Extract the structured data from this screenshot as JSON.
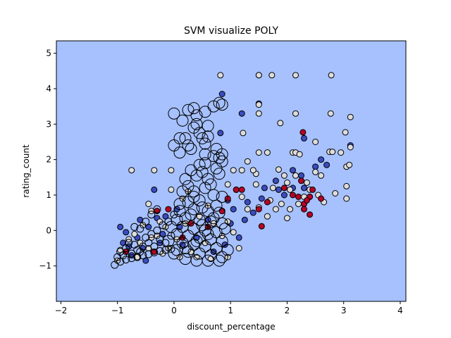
{
  "chart_data": {
    "type": "scatter",
    "title": "SVM visualize POLY",
    "xlabel": "discount_percentage",
    "ylabel": "rating_count",
    "xlim": [
      -2.08,
      4.1
    ],
    "ylim": [
      -2.0,
      5.35
    ],
    "xticks": [
      "−2",
      "−1",
      "0",
      "1",
      "2",
      "3",
      "4"
    ],
    "xtick_values": [
      -2,
      -1,
      0,
      1,
      2,
      3,
      4
    ],
    "yticks": [
      "−1",
      "0",
      "1",
      "2",
      "3",
      "4",
      "5"
    ],
    "ytick_values": [
      -1,
      0,
      1,
      2,
      3,
      4,
      5
    ],
    "grid": false,
    "legend": "none",
    "background_color": "#a6c1fe",
    "series": [
      {
        "color": "#3b4cc0",
        "marker": "small-filled",
        "points": [
          [
            0.85,
            3.85
          ],
          [
            0.82,
            2.75
          ],
          [
            1.5,
            3.58
          ],
          [
            1.5,
            4.38
          ],
          [
            1.2,
            3.3
          ],
          [
            2.3,
            2.6
          ],
          [
            2.1,
            1.7
          ],
          [
            2.3,
            1.2
          ],
          [
            1.95,
            1.0
          ],
          [
            2.6,
            2.0
          ],
          [
            2.7,
            1.85
          ],
          [
            3.12,
            2.4
          ],
          [
            1.8,
            1.4
          ],
          [
            1.6,
            1.2
          ],
          [
            1.55,
            0.9
          ],
          [
            1.4,
            0.5
          ],
          [
            1.3,
            0.8
          ],
          [
            1.25,
            0.3
          ],
          [
            1.05,
            0.6
          ],
          [
            0.95,
            0.85
          ],
          [
            2.1,
            1.2
          ],
          [
            2.25,
            1.55
          ],
          [
            2.5,
            1.8
          ],
          [
            1.85,
            1.15
          ],
          [
            -0.35,
            1.15
          ],
          [
            -0.3,
            0.35
          ],
          [
            -0.45,
            0.1
          ],
          [
            -0.6,
            0.3
          ],
          [
            -0.85,
            -0.05
          ],
          [
            -0.9,
            -0.35
          ],
          [
            -0.75,
            -0.7
          ],
          [
            -0.55,
            -0.5
          ],
          [
            -0.2,
            -0.1
          ],
          [
            -0.95,
            0.1
          ],
          [
            -0.65,
            -0.2
          ],
          [
            -0.15,
            0.4
          ],
          [
            0.1,
            0.1
          ],
          [
            0.15,
            -0.4
          ],
          [
            0.4,
            -0.2
          ],
          [
            0.6,
            0.3
          ],
          [
            0.7,
            -0.6
          ],
          [
            0.9,
            -0.4
          ],
          [
            1.0,
            0.2
          ],
          [
            1.15,
            -0.2
          ],
          [
            0.05,
            0.6
          ],
          [
            -0.5,
            -0.85
          ],
          [
            -0.8,
            -0.45
          ],
          [
            -0.25,
            -0.35
          ]
        ]
      },
      {
        "color": "#dddcdc",
        "marker": "small-filled",
        "points": [
          [
            0.82,
            4.38
          ],
          [
            1.5,
            4.38
          ],
          [
            1.73,
            4.38
          ],
          [
            2.15,
            4.38
          ],
          [
            2.78,
            4.38
          ],
          [
            1.5,
            3.3
          ],
          [
            1.5,
            3.55
          ],
          [
            2.15,
            3.3
          ],
          [
            2.77,
            3.3
          ],
          [
            1.22,
            2.75
          ],
          [
            1.88,
            3.03
          ],
          [
            3.12,
            3.2
          ],
          [
            3.03,
            2.77
          ],
          [
            2.5,
            2.5
          ],
          [
            2.75,
            2.22
          ],
          [
            2.8,
            2.22
          ],
          [
            2.95,
            2.2
          ],
          [
            3.12,
            2.35
          ],
          [
            2.1,
            2.2
          ],
          [
            2.15,
            2.2
          ],
          [
            2.22,
            2.15
          ],
          [
            1.65,
            2.2
          ],
          [
            1.5,
            2.2
          ],
          [
            1.3,
            1.95
          ],
          [
            1.85,
            1.72
          ],
          [
            1.95,
            1.55
          ],
          [
            2.0,
            1.35
          ],
          [
            2.15,
            1.55
          ],
          [
            2.5,
            1.65
          ],
          [
            2.6,
            1.55
          ],
          [
            2.35,
            1.35
          ],
          [
            2.05,
            1.15
          ],
          [
            1.75,
            1.2
          ],
          [
            1.45,
            1.3
          ],
          [
            1.45,
            1.6
          ],
          [
            1.2,
            1.7
          ],
          [
            1.4,
            1.7
          ],
          [
            1.05,
            1.7
          ],
          [
            0.95,
            1.3
          ],
          [
            1.1,
            1.15
          ],
          [
            1.2,
            0.95
          ],
          [
            1.3,
            0.6
          ],
          [
            1.5,
            0.65
          ],
          [
            1.7,
            0.85
          ],
          [
            1.9,
            0.75
          ],
          [
            2.05,
            0.6
          ],
          [
            2.3,
            0.95
          ],
          [
            2.4,
            1.15
          ],
          [
            2.55,
            1.0
          ],
          [
            2.65,
            0.8
          ],
          [
            2.85,
            1.05
          ],
          [
            3.05,
            1.25
          ],
          [
            3.05,
            0.9
          ],
          [
            3.05,
            1.8
          ],
          [
            3.1,
            1.85
          ],
          [
            2.4,
            0.95
          ],
          [
            1.65,
            0.4
          ],
          [
            1.8,
            0.6
          ],
          [
            2.0,
            0.35
          ],
          [
            2.2,
            0.75
          ],
          [
            -0.75,
            1.7
          ],
          [
            -0.35,
            1.7
          ],
          [
            -0.05,
            1.7
          ],
          [
            -0.05,
            1.15
          ],
          [
            0.25,
            1.1
          ],
          [
            0.15,
            0.9
          ],
          [
            -0.45,
            0.75
          ],
          [
            -0.4,
            0.55
          ],
          [
            -0.25,
            0.25
          ],
          [
            -0.55,
            0.15
          ],
          [
            -0.7,
            -0.1
          ],
          [
            -0.8,
            -0.25
          ],
          [
            -0.95,
            -0.55
          ],
          [
            -0.85,
            -0.6
          ],
          [
            -0.6,
            -0.35
          ],
          [
            -0.45,
            -0.5
          ],
          [
            -0.3,
            -0.15
          ],
          [
            -0.15,
            0.1
          ],
          [
            0.05,
            -0.25
          ],
          [
            -0.1,
            -0.5
          ],
          [
            0.2,
            0.2
          ],
          [
            0.3,
            -0.6
          ],
          [
            0.45,
            0.4
          ],
          [
            0.55,
            -0.35
          ],
          [
            0.7,
            0.2
          ],
          [
            0.85,
            -0.15
          ],
          [
            0.95,
            0.25
          ],
          [
            1.05,
            -0.05
          ],
          [
            0.85,
            0.55
          ],
          [
            0.6,
            0.7
          ],
          [
            1.15,
            -0.5
          ],
          [
            -0.65,
            -0.75
          ],
          [
            -1.0,
            -0.85
          ],
          [
            -0.4,
            -0.2
          ],
          [
            -0.2,
            -0.65
          ],
          [
            0.1,
            -0.75
          ],
          [
            0.4,
            -0.75
          ],
          [
            0.65,
            -0.8
          ],
          [
            0.95,
            -0.75
          ]
        ]
      },
      {
        "color": "#b40426",
        "marker": "small-filled",
        "points": [
          [
            2.28,
            2.77
          ],
          [
            2.25,
            1.4
          ],
          [
            2.45,
            1.15
          ],
          [
            2.4,
            0.95
          ],
          [
            2.3,
            0.75
          ],
          [
            2.2,
            0.95
          ],
          [
            2.35,
            0.85
          ],
          [
            2.3,
            0.6
          ],
          [
            2.4,
            0.45
          ],
          [
            2.6,
            0.9
          ],
          [
            2.1,
            1.0
          ],
          [
            1.95,
            1.2
          ],
          [
            1.55,
            0.12
          ],
          [
            1.5,
            0.6
          ],
          [
            1.65,
            0.8
          ],
          [
            1.1,
            1.15
          ],
          [
            1.2,
            1.15
          ],
          [
            0.95,
            0.9
          ],
          [
            0.85,
            0.55
          ],
          [
            -0.1,
            0.6
          ],
          [
            -0.35,
            -0.6
          ],
          [
            -0.85,
            -0.6
          ],
          [
            0.3,
            0.2
          ],
          [
            0.6,
            0.1
          ],
          [
            0.15,
            -0.2
          ],
          [
            -0.3,
            0.55
          ]
        ]
      },
      {
        "color": "none",
        "marker": "large-hollow",
        "points": [
          [
            0.0,
            3.3
          ],
          [
            0.25,
            3.4
          ],
          [
            0.35,
            3.45
          ],
          [
            0.55,
            3.35
          ],
          [
            0.7,
            3.5
          ],
          [
            0.8,
            3.6
          ],
          [
            0.85,
            3.55
          ],
          [
            0.15,
            3.1
          ],
          [
            0.4,
            3.0
          ],
          [
            0.6,
            2.95
          ],
          [
            0.35,
            2.9
          ],
          [
            0.45,
            2.75
          ],
          [
            0.5,
            2.6
          ],
          [
            0.6,
            2.65
          ],
          [
            0.2,
            2.6
          ],
          [
            0.25,
            2.4
          ],
          [
            0.3,
            2.3
          ],
          [
            0.0,
            2.4
          ],
          [
            0.1,
            2.2
          ],
          [
            0.55,
            2.15
          ],
          [
            0.7,
            2.1
          ],
          [
            0.8,
            2.05
          ],
          [
            0.85,
            2.15
          ],
          [
            0.85,
            1.95
          ],
          [
            0.55,
            1.9
          ],
          [
            0.45,
            1.85
          ],
          [
            0.75,
            1.75
          ],
          [
            0.8,
            1.6
          ],
          [
            0.6,
            1.45
          ],
          [
            0.4,
            1.55
          ],
          [
            0.3,
            1.7
          ],
          [
            0.2,
            1.45
          ],
          [
            0.25,
            1.25
          ],
          [
            0.15,
            1.1
          ],
          [
            0.35,
            1.1
          ],
          [
            0.55,
            1.2
          ],
          [
            0.7,
            1.0
          ],
          [
            0.85,
            0.95
          ],
          [
            0.45,
            0.85
          ],
          [
            0.25,
            0.8
          ],
          [
            0.1,
            0.75
          ],
          [
            0.35,
            0.6
          ],
          [
            0.6,
            0.55
          ],
          [
            0.8,
            0.5
          ],
          [
            0.2,
            0.35
          ],
          [
            0.05,
            0.3
          ],
          [
            0.45,
            0.3
          ],
          [
            0.65,
            0.25
          ],
          [
            0.85,
            0.2
          ],
          [
            0.15,
            0.1
          ],
          [
            0.35,
            0.05
          ],
          [
            0.55,
            0.0
          ],
          [
            0.75,
            -0.05
          ],
          [
            0.05,
            -0.1
          ],
          [
            0.25,
            -0.15
          ],
          [
            0.45,
            -0.2
          ],
          [
            0.65,
            -0.25
          ],
          [
            0.85,
            -0.3
          ],
          [
            0.15,
            -0.35
          ],
          [
            0.35,
            -0.4
          ],
          [
            0.55,
            -0.45
          ],
          [
            0.75,
            -0.5
          ],
          [
            0.95,
            -0.55
          ],
          [
            0.05,
            -0.55
          ],
          [
            0.25,
            -0.6
          ],
          [
            0.45,
            -0.65
          ],
          [
            0.65,
            -0.7
          ],
          [
            0.85,
            -0.75
          ],
          [
            0.2,
            -0.8
          ],
          [
            0.4,
            -0.85
          ],
          [
            0.6,
            -0.85
          ],
          [
            0.8,
            -0.85
          ],
          [
            0.3,
            0.45
          ],
          [
            0.5,
            0.15
          ],
          [
            0.7,
            0.35
          ],
          [
            0.1,
            0.55
          ],
          [
            0.9,
            0.05
          ],
          [
            0.6,
            -0.1
          ],
          [
            0.4,
            -0.3
          ],
          [
            0.2,
            -0.5
          ],
          [
            0.5,
            0.65
          ],
          [
            0.75,
            0.7
          ],
          [
            0.35,
            0.95
          ],
          [
            0.65,
            1.3
          ],
          [
            0.5,
            1.65
          ],
          [
            0.75,
            2.3
          ],
          [
            0.55,
            2.45
          ],
          [
            0.4,
            3.25
          ],
          [
            0.1,
            2.6
          ],
          [
            -0.05,
            0.1
          ],
          [
            -0.1,
            -0.3
          ],
          [
            0.0,
            -0.65
          ]
        ]
      },
      {
        "color": "none",
        "marker": "medium-hollow",
        "points": [
          [
            -1.05,
            -0.97
          ],
          [
            -0.95,
            -0.88
          ],
          [
            -0.85,
            -0.82
          ],
          [
            -0.75,
            -0.78
          ],
          [
            -0.65,
            -0.75
          ],
          [
            -0.55,
            -0.7
          ],
          [
            -0.45,
            -0.67
          ],
          [
            -0.35,
            -0.62
          ],
          [
            -0.25,
            -0.58
          ],
          [
            -0.15,
            -0.55
          ],
          [
            -0.05,
            -0.52
          ],
          [
            -0.95,
            -0.6
          ],
          [
            -0.85,
            -0.5
          ],
          [
            -0.75,
            -0.65
          ],
          [
            -0.65,
            -0.55
          ],
          [
            -0.55,
            -0.45
          ],
          [
            -0.45,
            -0.35
          ],
          [
            -0.35,
            -0.45
          ],
          [
            -0.25,
            -0.25
          ],
          [
            -0.15,
            -0.35
          ],
          [
            -0.05,
            -0.15
          ],
          [
            -1.0,
            -0.75
          ],
          [
            -0.9,
            -0.7
          ],
          [
            -0.8,
            -0.35
          ],
          [
            -0.7,
            -0.4
          ],
          [
            -0.6,
            -0.6
          ],
          [
            -0.5,
            -0.2
          ],
          [
            -0.4,
            -0.1
          ],
          [
            -0.3,
            0.0
          ],
          [
            -0.2,
            0.15
          ],
          [
            -0.1,
            0.25
          ],
          [
            0.0,
            0.45
          ],
          [
            -0.6,
            0.05
          ],
          [
            -0.5,
            0.25
          ],
          [
            -0.7,
            0.1
          ],
          [
            -0.4,
            0.45
          ],
          [
            -0.3,
            0.6
          ]
        ]
      }
    ]
  }
}
